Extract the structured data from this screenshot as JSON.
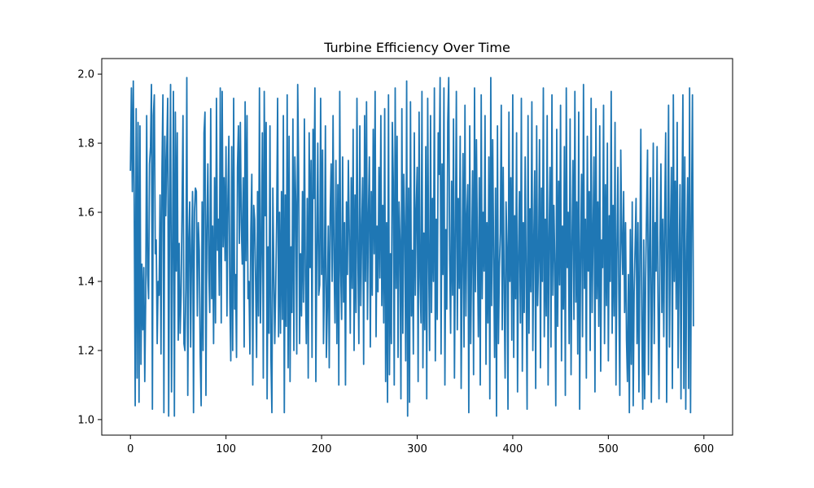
{
  "chart_data": {
    "type": "line",
    "title": "Turbine Efficiency Over Time",
    "xlabel": "",
    "ylabel": "",
    "xlim": [
      -30,
      630
    ],
    "ylim": [
      0.955,
      2.045
    ],
    "x_ticks": [
      0,
      100,
      200,
      300,
      400,
      500,
      600
    ],
    "y_ticks": [
      1.0,
      1.2,
      1.4,
      1.6,
      1.8,
      2.0
    ],
    "x_tick_labels": [
      "0",
      "100",
      "200",
      "300",
      "400",
      "500",
      "600"
    ],
    "y_tick_labels": [
      "1.0",
      "1.2",
      "1.4",
      "1.6",
      "1.8",
      "2.0"
    ],
    "grid": false,
    "legend": "none",
    "series": [
      {
        "color": "#1f77b4",
        "x_start": 0,
        "x_step": 1,
        "values": [
          1.72,
          1.96,
          1.66,
          1.98,
          1.62,
          1.04,
          1.9,
          1.12,
          1.86,
          1.05,
          1.85,
          1.16,
          1.45,
          1.26,
          1.44,
          1.11,
          1.36,
          1.88,
          1.42,
          1.35,
          1.74,
          1.79,
          1.97,
          1.03,
          1.88,
          1.94,
          1.48,
          1.52,
          1.22,
          1.4,
          1.36,
          1.65,
          1.19,
          1.72,
          1.94,
          1.02,
          1.82,
          1.59,
          1.78,
          1.93,
          1.01,
          1.62,
          1.97,
          1.08,
          1.48,
          1.95,
          1.01,
          1.89,
          1.43,
          1.83,
          1.23,
          1.51,
          1.25,
          1.36,
          1.61,
          1.88,
          1.22,
          1.2,
          1.38,
          1.99,
          1.07,
          1.52,
          1.63,
          1.21,
          1.5,
          1.66,
          1.02,
          1.6,
          1.67,
          1.66,
          1.3,
          1.57,
          1.49,
          1.19,
          1.04,
          1.63,
          1.2,
          1.83,
          1.89,
          1.07,
          1.55,
          1.74,
          1.43,
          1.31,
          1.9,
          1.35,
          1.56,
          1.22,
          1.7,
          1.28,
          1.93,
          1.49,
          1.58,
          1.36,
          1.96,
          1.28,
          1.95,
          1.5,
          1.7,
          1.46,
          1.79,
          1.3,
          1.64,
          1.82,
          1.35,
          1.17,
          1.79,
          1.2,
          1.93,
          1.32,
          1.42,
          1.18,
          1.73,
          1.85,
          1.51,
          1.86,
          1.57,
          1.45,
          1.7,
          1.21,
          1.92,
          1.46,
          1.88,
          1.35,
          1.4,
          1.19,
          1.55,
          1.71,
          1.1,
          1.62,
          1.58,
          1.4,
          1.18,
          1.66,
          1.3,
          1.96,
          1.28,
          1.49,
          1.83,
          1.12,
          1.95,
          1.59,
          1.86,
          1.06,
          1.5,
          1.25,
          1.85,
          1.18,
          1.02,
          1.67,
          1.43,
          1.22,
          1.38,
          1.58,
          1.93,
          1.24,
          1.6,
          1.25,
          1.66,
          1.29,
          1.88,
          1.02,
          1.65,
          1.27,
          1.94,
          1.15,
          1.82,
          1.11,
          1.5,
          1.31,
          1.87,
          1.2,
          1.76,
          1.63,
          1.19,
          1.97,
          1.72,
          1.22,
          1.48,
          1.3,
          1.66,
          1.34,
          1.87,
          1.42,
          1.22,
          1.64,
          1.12,
          1.83,
          1.44,
          1.75,
          1.18,
          1.84,
          1.64,
          1.96,
          1.11,
          1.48,
          1.8,
          1.36,
          1.39,
          1.93,
          1.42,
          1.78,
          1.22,
          1.41,
          1.85,
          1.18,
          1.32,
          1.56,
          1.15,
          1.6,
          1.74,
          1.4,
          1.88,
          1.46,
          1.28,
          1.75,
          1.22,
          1.68,
          1.1,
          1.95,
          1.43,
          1.29,
          1.76,
          1.34,
          1.57,
          1.1,
          1.63,
          1.42,
          1.75,
          1.53,
          1.25,
          1.7,
          1.38,
          1.84,
          1.2,
          1.65,
          1.31,
          1.93,
          1.47,
          1.22,
          1.85,
          1.33,
          1.55,
          1.7,
          1.16,
          1.88,
          1.4,
          1.92,
          1.29,
          1.59,
          1.76,
          1.21,
          1.66,
          1.36,
          1.84,
          1.48,
          1.95,
          1.24,
          1.56,
          1.37,
          1.73,
          1.41,
          1.88,
          1.33,
          1.62,
          1.28,
          1.9,
          1.11,
          1.57,
          1.05,
          1.94,
          1.13,
          1.48,
          1.22,
          1.86,
          1.69,
          1.1,
          1.96,
          1.38,
          1.82,
          1.18,
          1.63,
          1.52,
          1.06,
          1.9,
          1.25,
          1.71,
          1.55,
          1.17,
          1.98,
          1.01,
          1.67,
          1.05,
          1.92,
          1.3,
          1.49,
          1.19,
          1.83,
          1.36,
          1.61,
          1.73,
          1.11,
          1.89,
          1.41,
          1.28,
          1.95,
          1.15,
          1.54,
          1.26,
          1.79,
          1.06,
          1.93,
          1.47,
          1.2,
          1.88,
          1.31,
          1.64,
          1.4,
          1.96,
          1.17,
          1.58,
          1.29,
          1.83,
          1.71,
          1.99,
          1.19,
          1.74,
          1.42,
          1.96,
          1.1,
          1.55,
          1.32,
          1.86,
          1.99,
          1.46,
          1.25,
          1.69,
          1.36,
          1.87,
          1.12,
          1.53,
          1.95,
          1.26,
          1.64,
          1.38,
          1.82,
          1.09,
          1.43,
          1.77,
          1.21,
          1.91,
          1.3,
          1.59,
          1.68,
          1.02,
          1.85,
          1.22,
          1.47,
          1.72,
          1.13,
          1.96,
          1.37,
          1.81,
          1.5,
          1.24,
          1.7,
          1.1,
          1.94,
          1.35,
          1.6,
          1.43,
          1.88,
          1.16,
          1.57,
          1.28,
          1.76,
          1.06,
          1.99,
          1.33,
          1.81,
          1.47,
          1.18,
          1.67,
          1.01,
          1.85,
          1.22,
          1.44,
          1.54,
          1.91,
          1.26,
          1.73,
          1.38,
          1.12,
          1.63,
          1.5,
          1.03,
          1.89,
          1.4,
          1.7,
          1.23,
          1.94,
          1.18,
          1.59,
          1.35,
          1.83,
          1.08,
          1.47,
          1.66,
          1.28,
          1.93,
          1.14,
          1.57,
          1.31,
          1.76,
          1.42,
          1.03,
          1.88,
          1.25,
          1.61,
          1.37,
          1.92,
          1.2,
          1.52,
          1.72,
          1.09,
          1.85,
          1.33,
          1.46,
          1.81,
          1.15,
          1.67,
          1.4,
          1.96,
          1.24,
          1.58,
          1.3,
          1.88,
          1.1,
          1.53,
          1.73,
          1.21,
          1.94,
          1.36,
          1.62,
          1.45,
          1.04,
          1.84,
          1.27,
          1.69,
          1.39,
          1.91,
          1.17,
          1.56,
          1.32,
          1.79,
          1.07,
          1.96,
          1.44,
          1.6,
          1.22,
          1.87,
          1.13,
          1.51,
          1.75,
          1.29,
          1.95,
          1.34,
          1.63,
          1.19,
          1.89,
          1.03,
          1.48,
          1.71,
          1.24,
          1.97,
          1.38,
          1.58,
          1.12,
          1.82,
          1.43,
          1.66,
          1.2,
          1.93,
          1.31,
          1.54,
          1.76,
          1.08,
          1.9,
          1.35,
          1.63,
          1.27,
          1.85,
          1.14,
          1.52,
          1.44,
          1.91,
          1.22,
          1.68,
          1.33,
          1.8,
          1.17,
          1.59,
          1.4,
          1.95,
          1.25,
          1.62,
          1.3,
          1.86,
          1.1,
          1.49,
          1.73,
          1.36,
          1.07,
          1.78,
          1.53,
          1.42,
          1.66,
          1.31,
          1.57,
          1.23,
          1.11,
          1.42,
          1.02,
          1.55,
          1.16,
          1.63,
          1.04,
          1.37,
          1.5,
          1.64,
          1.22,
          1.57,
          1.08,
          1.47,
          1.84,
          1.29,
          1.03,
          1.52,
          1.06,
          1.41,
          1.6,
          1.78,
          1.13,
          1.49,
          1.7,
          1.05,
          1.37,
          1.8,
          1.22,
          1.57,
          1.43,
          1.79,
          1.33,
          1.06,
          1.51,
          1.74,
          1.31,
          1.58,
          1.24,
          1.6,
          1.83,
          1.05,
          1.48,
          1.91,
          1.21,
          1.54,
          1.73,
          1.09,
          1.94,
          1.4,
          1.69,
          1.32,
          1.86,
          1.15,
          1.44,
          1.68,
          1.06,
          1.58,
          1.94,
          1.09,
          1.76,
          1.03,
          1.48,
          1.7,
          1.09,
          1.96,
          1.02,
          1.58,
          1.94,
          1.27
        ]
      }
    ]
  }
}
